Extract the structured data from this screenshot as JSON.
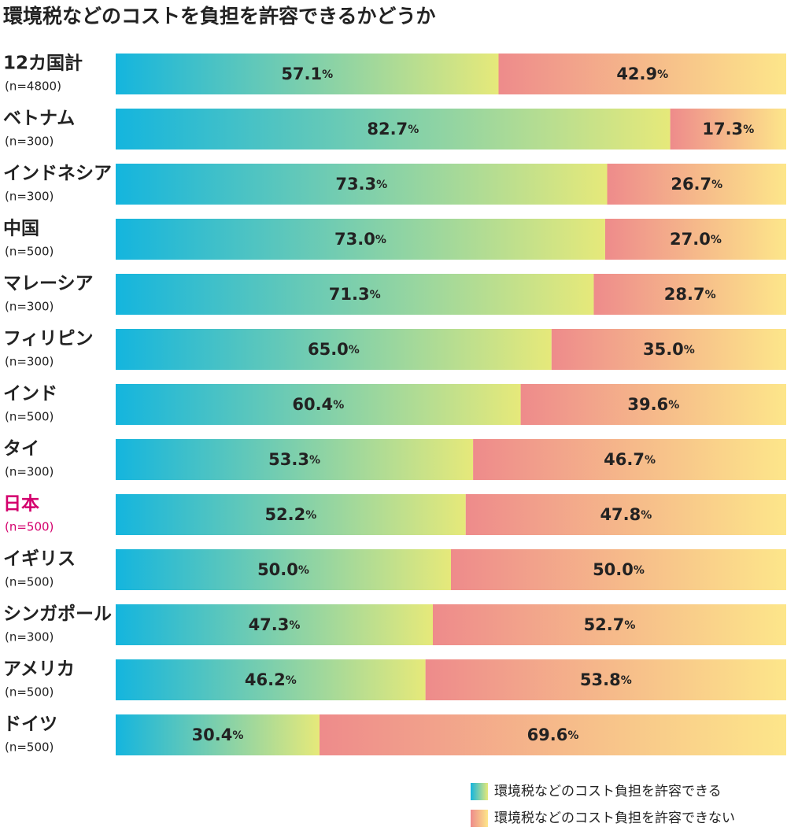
{
  "chart_data": {
    "type": "stacked-bar-horizontal",
    "title": "環境税などのコストを負担を許容できるかどうか",
    "categories": [
      "12カ国計",
      "ベトナム",
      "インドネシア",
      "中国",
      "マレーシア",
      "フィリピン",
      "インド",
      "タイ",
      "日本",
      "イギリス",
      "シンガポール",
      "アメリカ",
      "ドイツ"
    ],
    "sample_sizes": [
      "(n=4800)",
      "(n=300)",
      "(n=300)",
      "(n=500)",
      "(n=300)",
      "(n=300)",
      "(n=500)",
      "(n=300)",
      "(n=500)",
      "(n=500)",
      "(n=300)",
      "(n=500)",
      "(n=500)"
    ],
    "highlight_category": "日本",
    "highlight_color": "#d4006d",
    "xlim": [
      0,
      100
    ],
    "series": [
      {
        "name": "環境税などのコスト負担を許容できる",
        "color": "#14b5de",
        "color_end": "#e6e97a",
        "values": [
          57.1,
          82.7,
          73.3,
          73.0,
          71.3,
          65.0,
          60.4,
          53.3,
          52.2,
          50.0,
          47.3,
          46.2,
          30.4
        ],
        "value_labels": [
          "57.1%",
          "82.7%",
          "73.3%",
          "73.0%",
          "71.3%",
          "65.0%",
          "60.4%",
          "53.3%",
          "52.2%",
          "50.0%",
          "47.3%",
          "46.2%",
          "30.4%"
        ]
      },
      {
        "name": "環境税などのコスト負担を許容できない",
        "color": "#ee8b8b",
        "color_end": "#fde68a",
        "values": [
          42.9,
          17.3,
          26.7,
          27.0,
          28.7,
          35.0,
          39.6,
          46.7,
          47.8,
          50.0,
          52.7,
          53.8,
          69.6
        ],
        "value_labels": [
          "42.9%",
          "17.3%",
          "26.7%",
          "27.0%",
          "28.7%",
          "35.0%",
          "39.6%",
          "46.7%",
          "47.8%",
          "50.0%",
          "52.7%",
          "53.8%",
          "69.6%"
        ]
      }
    ]
  }
}
